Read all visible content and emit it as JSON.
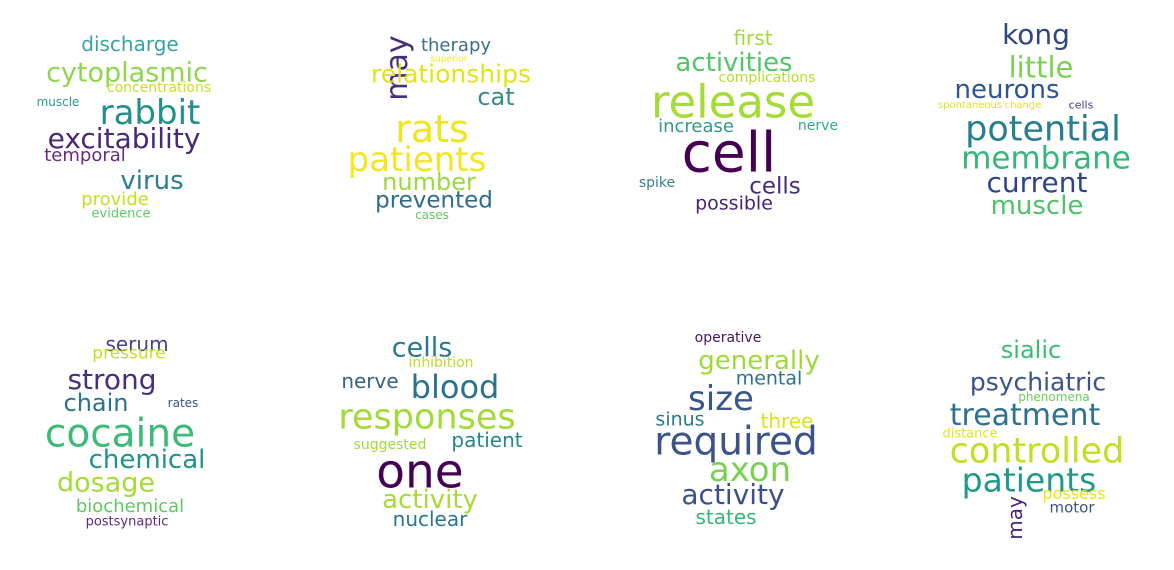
{
  "clouds": [
    {
      "words": [
        {
          "text": "discharge",
          "color": "#3aa3a0"
        },
        {
          "text": "cytoplasmic",
          "color": "#8fd64d"
        },
        {
          "text": "concentrations",
          "color": "#c8e020"
        },
        {
          "text": "muscle",
          "color": "#2a9b8a"
        },
        {
          "text": "rabbit",
          "color": "#21908c"
        },
        {
          "text": "excitability",
          "color": "#482878"
        },
        {
          "text": "temporal",
          "color": "#6a2a7e"
        },
        {
          "text": "virus",
          "color": "#2c7f8e"
        },
        {
          "text": "provide",
          "color": "#c6e021"
        },
        {
          "text": "evidence",
          "color": "#5ec962"
        }
      ]
    },
    {
      "words": [
        {
          "text": "may",
          "color": "#472d7b"
        },
        {
          "text": "therapy",
          "color": "#3e6f8b"
        },
        {
          "text": "relationships",
          "color": "#e3e418"
        },
        {
          "text": "cat",
          "color": "#3a8a8c"
        },
        {
          "text": "rats",
          "color": "#efe51c"
        },
        {
          "text": "patients",
          "color": "#f3e622"
        },
        {
          "text": "number",
          "color": "#9bd93c"
        },
        {
          "text": "prevented",
          "color": "#2f6b8e"
        },
        {
          "text": "cases",
          "color": "#5ec962"
        },
        {
          "text": "superior",
          "color": "#f1e51d"
        }
      ]
    },
    {
      "words": [
        {
          "text": "first",
          "color": "#9fda3a"
        },
        {
          "text": "activities",
          "color": "#52c569"
        },
        {
          "text": "complications",
          "color": "#b5de2b"
        },
        {
          "text": "release",
          "color": "#a5db36"
        },
        {
          "text": "increase",
          "color": "#2e9a8a"
        },
        {
          "text": "nerve",
          "color": "#2ab07f"
        },
        {
          "text": "cell",
          "color": "#440154"
        },
        {
          "text": "spike",
          "color": "#3b7c8e"
        },
        {
          "text": "cells",
          "color": "#472c7a"
        },
        {
          "text": "possible",
          "color": "#482475"
        }
      ]
    },
    {
      "words": [
        {
          "text": "kong",
          "color": "#31457e"
        },
        {
          "text": "little",
          "color": "#7ad151"
        },
        {
          "text": "neurons",
          "color": "#2f568c"
        },
        {
          "text": "spontaneous",
          "color": "#e0e31a"
        },
        {
          "text": "change",
          "color": "#e6e418"
        },
        {
          "text": "cells",
          "color": "#443983"
        },
        {
          "text": "potential",
          "color": "#277f8e"
        },
        {
          "text": "membrane",
          "color": "#35b779"
        },
        {
          "text": "current",
          "color": "#30438a"
        },
        {
          "text": "muscle",
          "color": "#4fc16b"
        }
      ]
    },
    {
      "words": [
        {
          "text": "serum",
          "color": "#414487"
        },
        {
          "text": "pressure",
          "color": "#c2df23"
        },
        {
          "text": "strong",
          "color": "#46307e"
        },
        {
          "text": "chain",
          "color": "#2c718e"
        },
        {
          "text": "rates",
          "color": "#3b528b"
        },
        {
          "text": "cocaine",
          "color": "#3bbb75"
        },
        {
          "text": "chemical",
          "color": "#20928c"
        },
        {
          "text": "dosage",
          "color": "#a5db36"
        },
        {
          "text": "biochemical",
          "color": "#5ec962"
        },
        {
          "text": "postsynaptic",
          "color": "#5b2a82"
        }
      ]
    },
    {
      "words": [
        {
          "text": "cells",
          "color": "#29788e"
        },
        {
          "text": "inhibition",
          "color": "#b8de29"
        },
        {
          "text": "nerve",
          "color": "#33638d"
        },
        {
          "text": "blood",
          "color": "#2c728e"
        },
        {
          "text": "responses",
          "color": "#a2da37"
        },
        {
          "text": "patient",
          "color": "#24868e"
        },
        {
          "text": "suggested",
          "color": "#a0da39"
        },
        {
          "text": "one",
          "color": "#440154"
        },
        {
          "text": "activity",
          "color": "#a8db34"
        },
        {
          "text": "nuclear",
          "color": "#2a768e"
        }
      ]
    },
    {
      "words": [
        {
          "text": "operative",
          "color": "#471365"
        },
        {
          "text": "generally",
          "color": "#a0da39"
        },
        {
          "text": "mental",
          "color": "#2c728e"
        },
        {
          "text": "size",
          "color": "#39568c"
        },
        {
          "text": "sinus",
          "color": "#2a788e"
        },
        {
          "text": "three",
          "color": "#dde318"
        },
        {
          "text": "required",
          "color": "#3b528b"
        },
        {
          "text": "axon",
          "color": "#7ad151"
        },
        {
          "text": "activity",
          "color": "#3d4e8a"
        },
        {
          "text": "states",
          "color": "#35b779"
        }
      ]
    },
    {
      "words": [
        {
          "text": "sialic",
          "color": "#3bbb75"
        },
        {
          "text": "psychiatric",
          "color": "#3b528b"
        },
        {
          "text": "phenomena",
          "color": "#6ccd5a"
        },
        {
          "text": "treatment",
          "color": "#2c728e"
        },
        {
          "text": "distance",
          "color": "#e2e418"
        },
        {
          "text": "controlled",
          "color": "#c0df25"
        },
        {
          "text": "patients",
          "color": "#1f9a8a"
        },
        {
          "text": "may",
          "color": "#482475"
        },
        {
          "text": "possess",
          "color": "#e8e419"
        },
        {
          "text": "motor",
          "color": "#3b528b"
        }
      ]
    }
  ]
}
